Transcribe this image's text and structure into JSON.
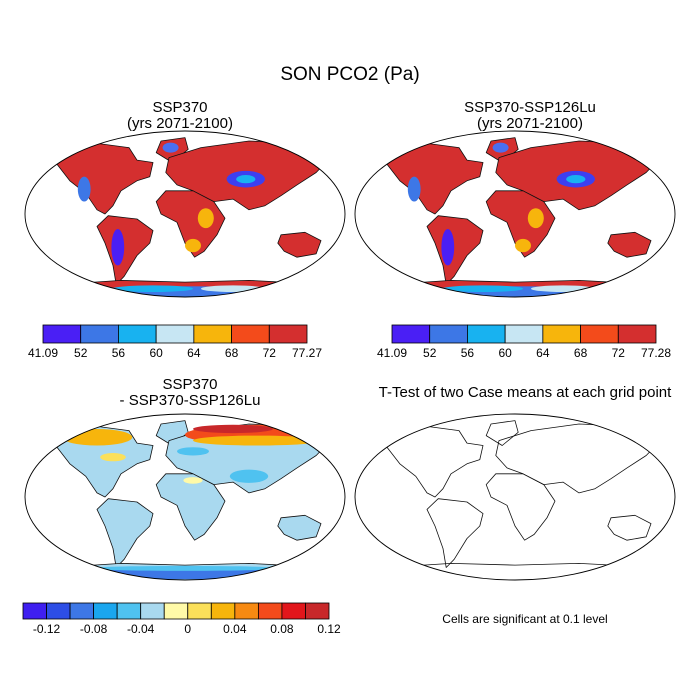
{
  "figure": {
    "title": "SON PCO2 (Pa)"
  },
  "chart_data": [
    {
      "type": "heatmap",
      "panel": "top-left",
      "title_line1": "SSP370",
      "title_line2": "(yrs 2071-2100)",
      "colorbar": {
        "min_label": "41.09",
        "max_label": "77.27",
        "ticks": [
          "52",
          "56",
          "60",
          "64",
          "68",
          "72"
        ],
        "colors": [
          "#4a1ff5",
          "#3d77e6",
          "#18b2f0",
          "#c7e6f3",
          "#f7b50c",
          "#f34b1b",
          "#d42f2f"
        ]
      }
    },
    {
      "type": "heatmap",
      "panel": "top-right",
      "title_line1": "SSP370-SSP126Lu",
      "title_line2": "(yrs 2071-2100)",
      "colorbar": {
        "min_label": "41.09",
        "max_label": "77.28",
        "ticks": [
          "52",
          "56",
          "60",
          "64",
          "68",
          "72"
        ],
        "colors": [
          "#4a1ff5",
          "#3d77e6",
          "#18b2f0",
          "#c7e6f3",
          "#f7b50c",
          "#f34b1b",
          "#d42f2f"
        ]
      }
    },
    {
      "type": "heatmap",
      "panel": "bottom-left",
      "title_line1": "SSP370",
      "title_line2": "- SSP370-SSP126Lu",
      "colorbar": {
        "labels": [
          "-0.12",
          "-0.08",
          "-0.04",
          "0",
          "0.04",
          "0.08",
          "0.12"
        ],
        "colors": [
          "#3f1ff0",
          "#2d4ee6",
          "#3d77e6",
          "#1aa6ee",
          "#4fc2f0",
          "#a9d9ef",
          "#fffaa8",
          "#fbe05a",
          "#f7b50c",
          "#f78a12",
          "#f34b1b",
          "#e2161b",
          "#c8282a"
        ]
      }
    },
    {
      "type": "heatmap",
      "panel": "bottom-right",
      "title": "T-Test of two Case means at each grid point",
      "footnote": "Cells are significant at 0.1 level"
    }
  ]
}
